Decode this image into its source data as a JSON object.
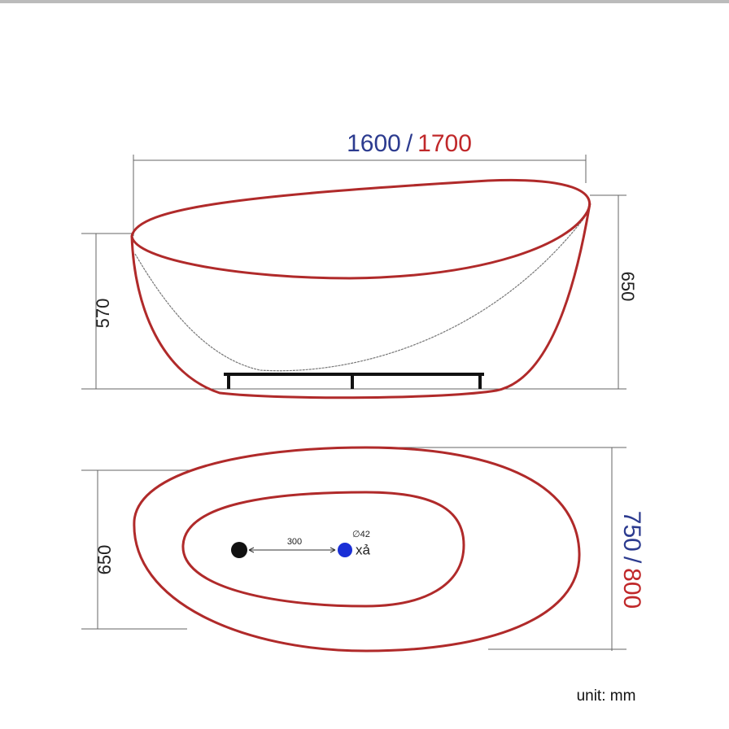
{
  "side_view": {
    "width": {
      "standard": "1600",
      "separator": "/",
      "large": "1700"
    },
    "inner_height": "570",
    "outer_height": "650"
  },
  "top_view": {
    "depth": "650",
    "hole_spacing": "300",
    "drain_diameter": "∅42",
    "drain_label": "xả",
    "width": {
      "standard": "750",
      "separator": "/",
      "large": "800"
    }
  },
  "unit": "unit: mm"
}
